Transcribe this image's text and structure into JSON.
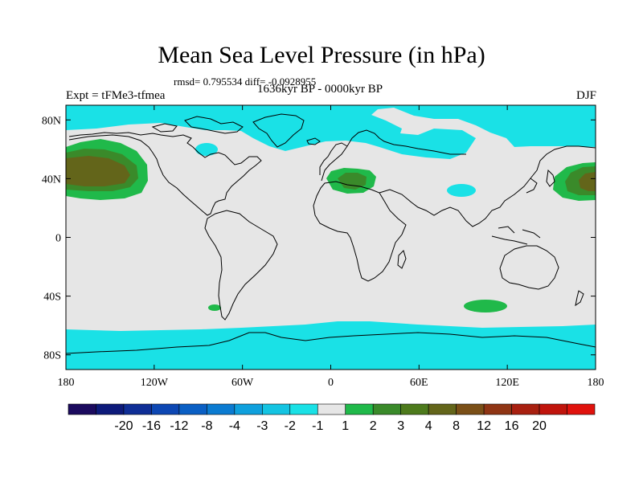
{
  "title": "Mean Sea Level Pressure (in hPa)",
  "stats": "rmsd= 0.795534 diff= -0.0928955",
  "experiment": "Expt = tFMe3-tfmea",
  "period": "1636kyr BP - 0000kyr BP",
  "season": "DJF",
  "axes": {
    "lon_ticks": [
      {
        "lon": -180,
        "label": "180"
      },
      {
        "lon": -120,
        "label": "120W"
      },
      {
        "lon": -60,
        "label": "60W"
      },
      {
        "lon": 0,
        "label": "0"
      },
      {
        "lon": 60,
        "label": "60E"
      },
      {
        "lon": 120,
        "label": "120E"
      },
      {
        "lon": 180,
        "label": "180"
      }
    ],
    "lat_ticks": [
      {
        "lat": 80,
        "label": "80N"
      },
      {
        "lat": 40,
        "label": "40N"
      },
      {
        "lat": 0,
        "label": "0"
      },
      {
        "lat": -40,
        "label": "40S"
      },
      {
        "lat": -80,
        "label": "80S"
      }
    ],
    "lon_range": [
      -180,
      180
    ],
    "lat_range": [
      -90,
      90
    ]
  },
  "colorbar": {
    "colors": [
      "#1b0a5e",
      "#0d1a7a",
      "#0f2e96",
      "#0d47b3",
      "#0a5fc4",
      "#0b7bd1",
      "#0fa0dd",
      "#14c4e2",
      "#1ae1e6",
      "#e6e6e6",
      "#20b94a",
      "#3a8a2a",
      "#4d7a1c",
      "#63651a",
      "#7a4f17",
      "#8f3514",
      "#a82010",
      "#c0140c",
      "#e0120d"
    ],
    "labels": [
      "-20",
      "-16",
      "-12",
      "-8",
      "-4",
      "-3",
      "-2",
      "-1",
      "1",
      "2",
      "3",
      "4",
      "8",
      "12",
      "16",
      "20"
    ]
  },
  "colors": {
    "neutral": "#e6e6e6",
    "negative_1_2": "#1ae1e6",
    "positive_1_2": "#20b94a",
    "positive_2_3": "#3a8a2a",
    "positive_3_4": "#63651a"
  },
  "regions": {
    "north_pacific_high": "+1 to +4 hPa",
    "western_pacific_high": "+1 to +4 hPa",
    "mediterranean_high": "+1 to +3 hPa",
    "southern_indian_ocean_high": "+1 to +2 hPa",
    "arctic_low": "-1 to -2 hPa",
    "southern_ocean_low": "-1 to -2 hPa"
  }
}
